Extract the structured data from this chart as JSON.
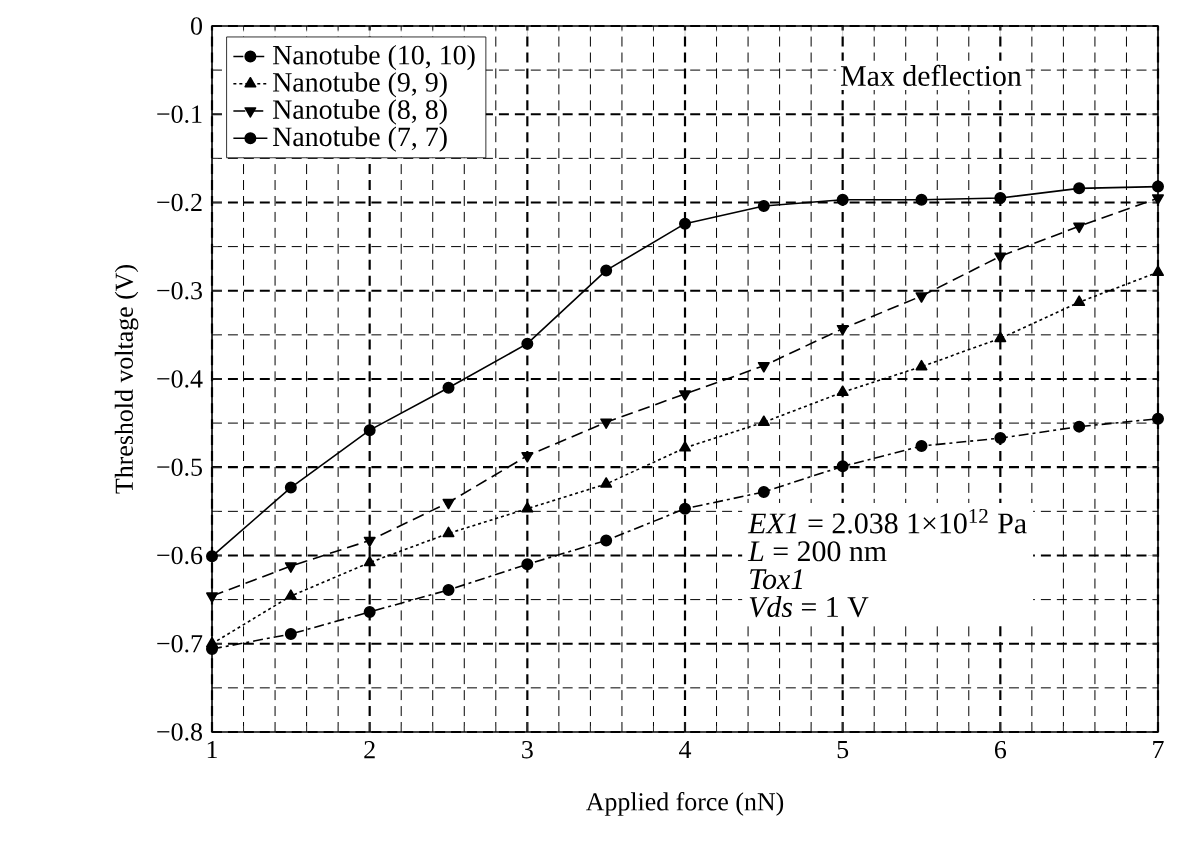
{
  "chart_data": {
    "type": "line",
    "xlabel": "Applied force (nN)",
    "ylabel": "Threshold voltage (V)",
    "x": [
      1,
      1.5,
      2,
      2.5,
      3,
      3.5,
      4,
      4.5,
      5,
      5.5,
      6,
      6.5,
      7
    ],
    "series": [
      {
        "name": "Nanotube (10, 10)",
        "color": "#000000",
        "marker": "circle",
        "line_style": "dashdot",
        "values": [
          -0.706,
          -0.689,
          -0.664,
          -0.639,
          -0.61,
          -0.583,
          -0.547,
          -0.528,
          -0.499,
          -0.476,
          -0.467,
          -0.454,
          -0.445
        ]
      },
      {
        "name": "Nanotube (9, 9)",
        "color": "#000000",
        "marker": "triangle",
        "line_style": "dotted",
        "values": [
          -0.7,
          -0.646,
          -0.608,
          -0.575,
          -0.547,
          -0.519,
          -0.478,
          -0.449,
          -0.415,
          -0.386,
          -0.354,
          -0.313,
          -0.279
        ]
      },
      {
        "name": "Nanotube (8, 8)",
        "color": "#000000",
        "marker": "triangle_down",
        "line_style": "dashed",
        "values": [
          -0.646,
          -0.612,
          -0.583,
          -0.54,
          -0.487,
          -0.449,
          -0.417,
          -0.385,
          -0.343,
          -0.306,
          -0.261,
          -0.227,
          -0.195
        ]
      },
      {
        "name": "Nanotube (7, 7)",
        "color": "#000000",
        "marker": "circle",
        "line_style": "solid",
        "values": [
          -0.601,
          -0.523,
          -0.458,
          -0.41,
          -0.36,
          -0.277,
          -0.224,
          -0.204,
          -0.197,
          -0.197,
          -0.195,
          -0.184,
          -0.182
        ]
      }
    ],
    "xlim": [
      1,
      7
    ],
    "ylim": [
      -0.8,
      0
    ],
    "xticks": [
      1,
      2,
      3,
      4,
      5,
      6,
      7
    ],
    "yticks": [
      {
        "value": -0.8,
        "label": "−0.8"
      },
      {
        "value": -0.7,
        "label": "−0.7"
      },
      {
        "value": -0.6,
        "label": "−0.6"
      },
      {
        "value": -0.5,
        "label": "−0.5"
      },
      {
        "value": -0.4,
        "label": "−0.4"
      },
      {
        "value": -0.3,
        "label": "−0.3"
      },
      {
        "value": -0.2,
        "label": "−0.2"
      },
      {
        "value": -0.1,
        "label": "−0.1"
      },
      {
        "value": 0,
        "label": "0"
      }
    ],
    "grid": true,
    "legend": "top left",
    "annotations": [
      "Max deflection",
      "*EX1* = 2.038 1×10$^{12}$ Pa",
      "*L* = 200 nm",
      "*Tox1*",
      "*Vds* = 1 V"
    ]
  }
}
